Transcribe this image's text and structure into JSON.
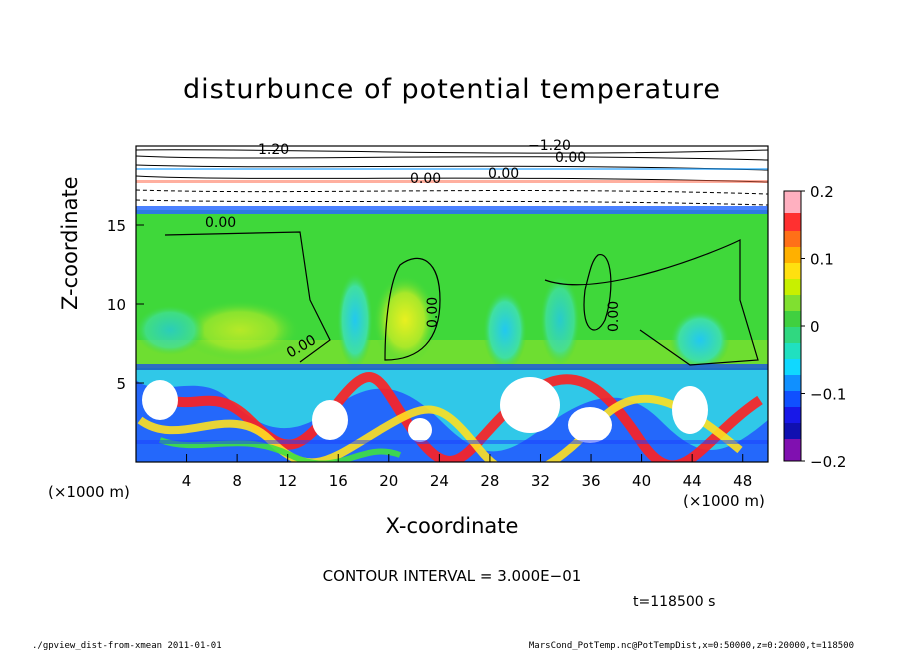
{
  "chart_data": {
    "type": "heatmap",
    "title": "disturbunce of potential temperature",
    "xlabel": "X-coordinate",
    "ylabel": "Z-coordinate",
    "x_unit": "(×1000 m)",
    "xlim": [
      0,
      50
    ],
    "ylim": [
      0,
      20
    ],
    "xticks": [
      4,
      8,
      12,
      16,
      20,
      24,
      28,
      32,
      36,
      40,
      44,
      48
    ],
    "yticks": [
      5,
      10,
      15
    ],
    "colorbar": {
      "range": [
        -0.2,
        0.2
      ],
      "tick_values": [
        0.2,
        0.1,
        0,
        -0.1,
        -0.2
      ],
      "tick_labels": [
        "0.2",
        "0.1",
        "0",
        "−0.1",
        "−0.2"
      ]
    },
    "contour_labels": [
      "−1.20",
      "1.20",
      "0.00",
      "0.00",
      "0.00",
      "0.00",
      "0.00",
      "0.00",
      "0.00"
    ],
    "contour_interval": "CONTOUR INTERVAL = 3.000E−01",
    "time_label": "t=118500 s",
    "regions": [
      {
        "x0": 0,
        "x1": 50,
        "z0": 15.7,
        "z1": 20,
        "value": 0.0
      },
      {
        "x0": 0,
        "x1": 50,
        "z0": 6,
        "z1": 15.7,
        "value": 0.02
      },
      {
        "x0": 0,
        "x1": 50,
        "z0": 0,
        "z1": 6,
        "value": -0.05
      }
    ]
  },
  "footer": {
    "left": "./gpview_dist-from-xmean  2011-01-01",
    "right": "MarsCond_PotTemp.nc@PotTempDist,x=0:50000,z=0:20000,t=118500"
  }
}
